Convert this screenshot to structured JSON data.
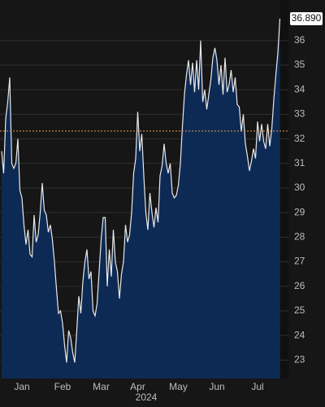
{
  "chart_data": {
    "type": "area",
    "categories": [
      null,
      null,
      null,
      null,
      null,
      null,
      null,
      null,
      null,
      null,
      "Jan",
      null,
      null,
      null,
      null,
      null,
      null,
      null,
      null,
      null,
      null,
      null,
      null,
      null,
      null,
      null,
      null,
      null,
      null,
      null,
      "Feb",
      null,
      null,
      null,
      null,
      null,
      null,
      null,
      null,
      null,
      null,
      null,
      null,
      null,
      null,
      null,
      null,
      null,
      null,
      "Mar",
      null,
      null,
      null,
      null,
      null,
      null,
      null,
      null,
      null,
      null,
      null,
      null,
      null,
      null,
      null,
      null,
      null,
      "Apr",
      null,
      null,
      null,
      null,
      null,
      null,
      null,
      null,
      null,
      null,
      null,
      null,
      null,
      null,
      null,
      null,
      null,
      null,
      null,
      "May",
      null,
      null,
      null,
      null,
      null,
      null,
      null,
      null,
      null,
      null,
      null,
      null,
      null,
      null,
      null,
      null,
      null,
      null,
      "Jun",
      null,
      null,
      null,
      null,
      null,
      null,
      null,
      null,
      null,
      null,
      null,
      null,
      null,
      null,
      null,
      null,
      null,
      null,
      null,
      "Jul",
      null,
      null,
      null,
      null,
      null,
      null,
      null,
      null,
      null,
      null,
      null
    ],
    "year_label": "2024",
    "series": [
      {
        "color": "#e8e8e8",
        "fill": "#0d2a55",
        "values": [
          31.5,
          30.6,
          32.8,
          33.5,
          34.5,
          31.0,
          30.8,
          31.0,
          32.0,
          29.9,
          29.6,
          28.5,
          27.7,
          28.3,
          27.3,
          27.2,
          28.9,
          27.8,
          28.1,
          29.0,
          30.2,
          29.1,
          28.9,
          28.2,
          28.5,
          27.9,
          27.0,
          25.9,
          24.9,
          25.0,
          24.5,
          23.6,
          22.9,
          24.2,
          23.9,
          23.3,
          22.9,
          24.2,
          25.6,
          24.9,
          26.2,
          27.0,
          27.5,
          26.3,
          26.6,
          25.0,
          24.8,
          25.3,
          26.6,
          27.9,
          28.8,
          28.8,
          26.0,
          27.5,
          26.4,
          28.3,
          27.0,
          26.6,
          25.5,
          26.5,
          27.0,
          28.5,
          27.8,
          28.1,
          29.0,
          30.6,
          31.2,
          33.1,
          31.5,
          32.2,
          30.5,
          29.0,
          28.3,
          29.8,
          29.0,
          28.4,
          29.2,
          28.6,
          30.5,
          30.9,
          31.8,
          31.0,
          30.6,
          31.0,
          29.8,
          29.6,
          29.7,
          30.1,
          31.0,
          32.5,
          33.8,
          34.6,
          35.2,
          34.2,
          35.1,
          33.9,
          35.2,
          34.0,
          36.0,
          33.5,
          34.0,
          33.2,
          33.8,
          34.4,
          35.3,
          35.7,
          35.2,
          34.2,
          35.0,
          33.8,
          35.3,
          33.9,
          34.2,
          34.8,
          33.9,
          34.5,
          33.4,
          33.3,
          32.3,
          33.0,
          31.8,
          31.3,
          30.7,
          31.1,
          31.6,
          31.2,
          32.7,
          31.9,
          32.6,
          31.9,
          31.6,
          32.6,
          31.7,
          32.4,
          33.6,
          34.6,
          35.5,
          36.89
        ],
        "last_value_label": "36.890"
      }
    ],
    "reference_line": {
      "value": 32.32,
      "color": "#e8a04a"
    },
    "ylim": [
      22.25,
      37.65
    ],
    "yticks": [
      23,
      24,
      25,
      26,
      27,
      28,
      29,
      30,
      31,
      32,
      33,
      34,
      35,
      36
    ],
    "grid": true
  }
}
